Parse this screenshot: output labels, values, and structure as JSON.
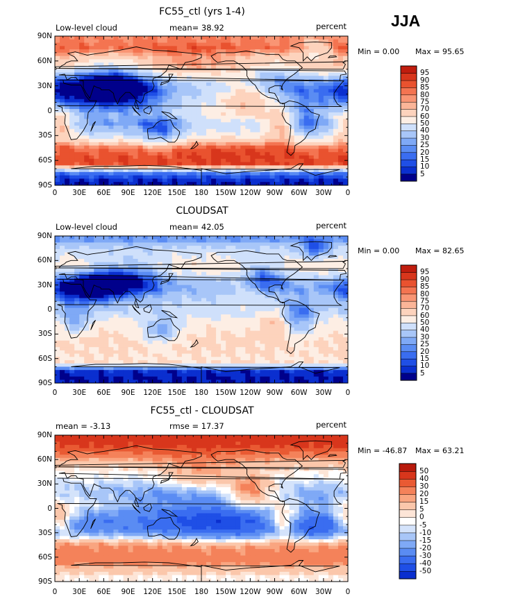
{
  "season_label": "JJA",
  "colors": {
    "seq": [
      "#00008b",
      "#0a2fcf",
      "#1f4fe6",
      "#3a6df0",
      "#5a8cf3",
      "#7fa9f6",
      "#a8c6f8",
      "#cfe0fb",
      "#fdeee4",
      "#fdd3bd",
      "#fbb598",
      "#f99574",
      "#f47451",
      "#e9522f",
      "#d8361c",
      "#c01d0e",
      "#8b0000"
    ],
    "div": [
      "#00008b",
      "#0a2fcf",
      "#1f4fe6",
      "#3a6df0",
      "#5a8cf3",
      "#7fa9f6",
      "#a8c6f8",
      "#d4e3fb",
      "#ffffff",
      "#fde5d7",
      "#fbc7ab",
      "#f9a580",
      "#f4825a",
      "#e95a33",
      "#d8361c",
      "#b81a0c",
      "#8b0000"
    ]
  },
  "axis": {
    "lat_labels": [
      "90N",
      "60N",
      "30N",
      "0",
      "30S",
      "60S",
      "90S"
    ],
    "lon_labels": [
      "0",
      "30E",
      "60E",
      "90E",
      "120E",
      "150E",
      "180",
      "150W",
      "120W",
      "90W",
      "60W",
      "30W",
      "0"
    ]
  },
  "panels": [
    {
      "title": "FC55_ctl (yrs 1-4)",
      "left_label": "Low-level cloud",
      "center_label": "mean=  38.92",
      "right_label": "percent",
      "min_text": "Min =    0.00",
      "max_text": "Max =   95.65",
      "palette": "seq",
      "colorbar_labels": [
        "5",
        "10",
        "15",
        "20",
        "25",
        "30",
        "40",
        "50",
        "60",
        "70",
        "75",
        "80",
        "85",
        "90",
        "95"
      ]
    },
    {
      "title": "CLOUDSAT",
      "left_label": "Low-level cloud",
      "center_label": "mean=  42.05",
      "right_label": "percent",
      "min_text": "Min =    0.00",
      "max_text": "Max =   82.65",
      "palette": "seq",
      "colorbar_labels": [
        "5",
        "10",
        "15",
        "20",
        "25",
        "30",
        "40",
        "50",
        "60",
        "70",
        "75",
        "80",
        "85",
        "90",
        "95"
      ]
    },
    {
      "title": "FC55_ctl - CLOUDSAT",
      "left_label": "mean =   -3.13",
      "center_label": "rmse =   17.37",
      "right_label": "percent",
      "min_text": "Min = -46.87",
      "max_text": "Max =   63.21",
      "palette": "div",
      "colorbar_labels": [
        "-50",
        "-40",
        "-30",
        "-20",
        "-15",
        "-10",
        "-5",
        "0",
        "5",
        "15",
        "20",
        "30",
        "40",
        "50"
      ]
    }
  ],
  "chart_data": [
    {
      "type": "heatmap",
      "title": "FC55_ctl (yrs 1-4)",
      "variable": "Low-level cloud",
      "units": "percent",
      "mean": 38.92,
      "min": 0.0,
      "max": 95.65,
      "x_range": [
        0,
        360
      ],
      "y_range": [
        -90,
        90
      ],
      "levels": [
        5,
        10,
        15,
        20,
        25,
        30,
        40,
        50,
        60,
        70,
        75,
        80,
        85,
        90,
        95
      ],
      "zonal_mean_profile": {
        "lat": [
          85,
          75,
          65,
          55,
          45,
          35,
          25,
          15,
          5,
          -5,
          -15,
          -25,
          -35,
          -45,
          -55,
          -65,
          -75,
          -85
        ],
        "value": [
          80,
          85,
          70,
          65,
          45,
          25,
          20,
          28,
          35,
          40,
          30,
          38,
          55,
          82,
          88,
          88,
          20,
          5
        ]
      }
    },
    {
      "type": "heatmap",
      "title": "CLOUDSAT",
      "variable": "Low-level cloud",
      "units": "percent",
      "mean": 42.05,
      "min": 0.0,
      "max": 82.65,
      "x_range": [
        0,
        360
      ],
      "y_range": [
        -90,
        90
      ],
      "levels": [
        5,
        10,
        15,
        20,
        25,
        30,
        40,
        50,
        60,
        70,
        75,
        80,
        85,
        90,
        95
      ],
      "zonal_mean_profile": {
        "lat": [
          85,
          75,
          65,
          55,
          45,
          35,
          25,
          15,
          5,
          -5,
          -15,
          -25,
          -35,
          -45,
          -55,
          -65,
          -75,
          -85
        ],
        "value": [
          25,
          42,
          50,
          58,
          52,
          35,
          30,
          38,
          42,
          45,
          55,
          58,
          62,
          62,
          60,
          60,
          8,
          5
        ]
      }
    },
    {
      "type": "heatmap",
      "title": "FC55_ctl - CLOUDSAT",
      "units": "percent",
      "mean": -3.13,
      "rmse": 17.37,
      "min": -46.87,
      "max": 63.21,
      "x_range": [
        0,
        360
      ],
      "y_range": [
        -90,
        90
      ],
      "levels": [
        -50,
        -40,
        -30,
        -20,
        -15,
        -10,
        -5,
        0,
        5,
        15,
        20,
        30,
        40,
        50
      ],
      "zonal_mean_profile": {
        "lat": [
          85,
          75,
          65,
          55,
          45,
          35,
          25,
          15,
          5,
          -5,
          -15,
          -25,
          -35,
          -45,
          -55,
          -65,
          -75,
          -85
        ],
        "value": [
          45,
          40,
          25,
          10,
          0,
          -5,
          -10,
          -10,
          -5,
          -15,
          -25,
          -25,
          -10,
          20,
          25,
          25,
          10,
          0
        ]
      }
    }
  ]
}
